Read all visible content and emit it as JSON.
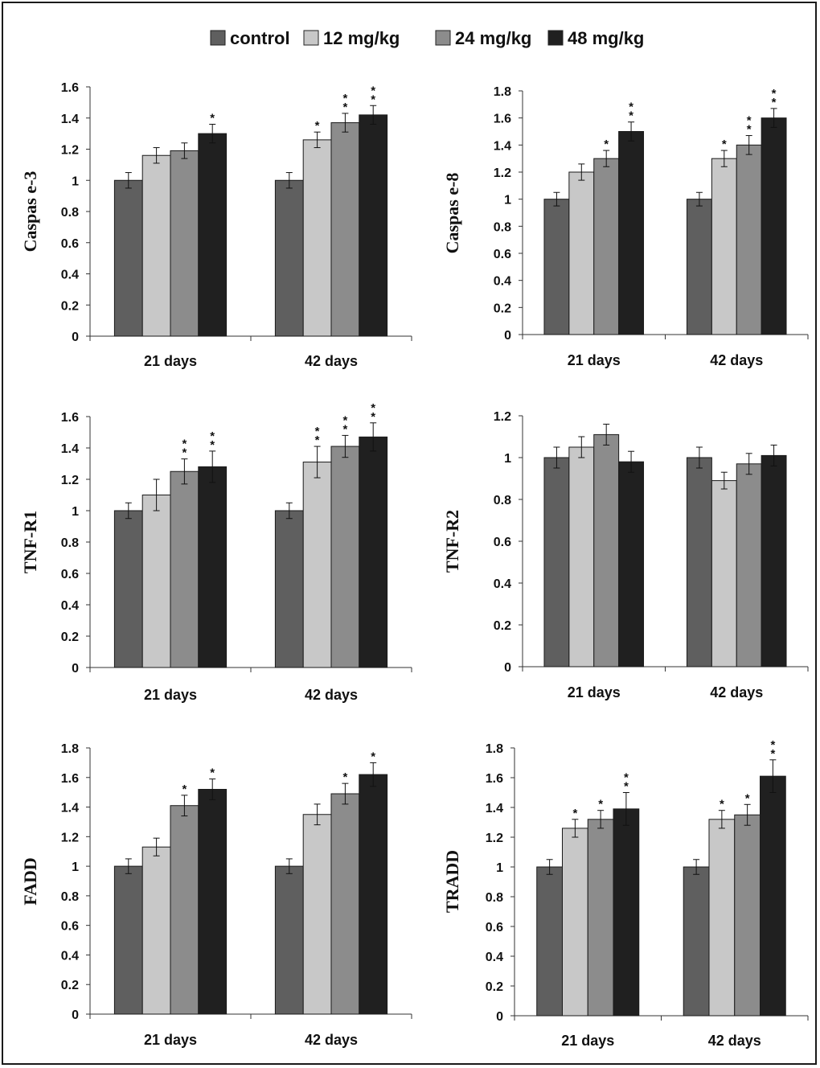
{
  "legend": {
    "series": [
      {
        "name": "control",
        "color": "#5f5f5f"
      },
      {
        "name": "12 mg/kg",
        "color": "#c8c8c8"
      },
      {
        "name": "24 mg/kg",
        "color": "#8c8c8c"
      },
      {
        "name": "48 mg/kg",
        "color": "#202020"
      }
    ]
  },
  "chart_data": [
    {
      "type": "bar",
      "ylabel": "Caspas e-3",
      "categories": [
        "21 days",
        "42 days"
      ],
      "ylim": [
        0,
        1.6
      ],
      "yticks": [
        "0",
        "0.2",
        "0.4",
        "0.6",
        "0.8",
        "1",
        "1.2",
        "1.4",
        "1.6"
      ],
      "series": [
        {
          "name": "control",
          "values": [
            1.0,
            1.0
          ],
          "errors": [
            0.05,
            0.05
          ],
          "sig": [
            "",
            ""
          ]
        },
        {
          "name": "12 mg/kg",
          "values": [
            1.16,
            1.26
          ],
          "errors": [
            0.05,
            0.05
          ],
          "sig": [
            "",
            "*"
          ]
        },
        {
          "name": "24 mg/kg",
          "values": [
            1.19,
            1.37
          ],
          "errors": [
            0.05,
            0.06
          ],
          "sig": [
            "",
            "**"
          ]
        },
        {
          "name": "48 mg/kg",
          "values": [
            1.3,
            1.42
          ],
          "errors": [
            0.06,
            0.06
          ],
          "sig": [
            "*",
            "**"
          ]
        }
      ]
    },
    {
      "type": "bar",
      "ylabel": "Caspas e-8",
      "categories": [
        "21 days",
        "42 days"
      ],
      "ylim": [
        0,
        1.8
      ],
      "yticks": [
        "0",
        "0.2",
        "0.4",
        "0.6",
        "0.8",
        "1",
        "1.2",
        "1.4",
        "1.6",
        "1.8"
      ],
      "series": [
        {
          "name": "control",
          "values": [
            1.0,
            1.0
          ],
          "errors": [
            0.05,
            0.05
          ],
          "sig": [
            "",
            ""
          ]
        },
        {
          "name": "12 mg/kg",
          "values": [
            1.2,
            1.3
          ],
          "errors": [
            0.06,
            0.06
          ],
          "sig": [
            "",
            "*"
          ]
        },
        {
          "name": "24 mg/kg",
          "values": [
            1.3,
            1.4
          ],
          "errors": [
            0.06,
            0.07
          ],
          "sig": [
            "*",
            "**"
          ]
        },
        {
          "name": "48 mg/kg",
          "values": [
            1.5,
            1.6
          ],
          "errors": [
            0.07,
            0.07
          ],
          "sig": [
            "**",
            "**"
          ]
        }
      ]
    },
    {
      "type": "bar",
      "ylabel": "TNF-R1",
      "categories": [
        "21 days",
        "42 days"
      ],
      "ylim": [
        0,
        1.6
      ],
      "yticks": [
        "0",
        "0.2",
        "0.4",
        "0.6",
        "0.8",
        "1",
        "1.2",
        "1.4",
        "1.6"
      ],
      "series": [
        {
          "name": "control",
          "values": [
            1.0,
            1.0
          ],
          "errors": [
            0.05,
            0.05
          ],
          "sig": [
            "",
            ""
          ]
        },
        {
          "name": "12 mg/kg",
          "values": [
            1.1,
            1.31
          ],
          "errors": [
            0.1,
            0.1
          ],
          "sig": [
            "",
            "**"
          ]
        },
        {
          "name": "24 mg/kg",
          "values": [
            1.25,
            1.41
          ],
          "errors": [
            0.08,
            0.07
          ],
          "sig": [
            "**",
            "**"
          ]
        },
        {
          "name": "48 mg/kg",
          "values": [
            1.28,
            1.47
          ],
          "errors": [
            0.1,
            0.09
          ],
          "sig": [
            "**",
            "**"
          ]
        }
      ]
    },
    {
      "type": "bar",
      "ylabel": "TNF-R2",
      "categories": [
        "21 days",
        "42 days"
      ],
      "ylim": [
        0,
        1.2
      ],
      "yticks": [
        "0",
        "0.2",
        "0.4",
        "0.6",
        "0.8",
        "1",
        "1.2"
      ],
      "series": [
        {
          "name": "control",
          "values": [
            1.0,
            1.0
          ],
          "errors": [
            0.05,
            0.05
          ],
          "sig": [
            "",
            ""
          ]
        },
        {
          "name": "12 mg/kg",
          "values": [
            1.05,
            0.89
          ],
          "errors": [
            0.05,
            0.04
          ],
          "sig": [
            "",
            ""
          ]
        },
        {
          "name": "24 mg/kg",
          "values": [
            1.11,
            0.97
          ],
          "errors": [
            0.05,
            0.05
          ],
          "sig": [
            "",
            ""
          ]
        },
        {
          "name": "48 mg/kg",
          "values": [
            0.98,
            1.01
          ],
          "errors": [
            0.05,
            0.05
          ],
          "sig": [
            "",
            ""
          ]
        }
      ]
    },
    {
      "type": "bar",
      "ylabel": "FADD",
      "categories": [
        "21 days",
        "42 days"
      ],
      "ylim": [
        0,
        1.8
      ],
      "yticks": [
        "0",
        "0.2",
        "0.4",
        "0.6",
        "0.8",
        "1",
        "1.2",
        "1.4",
        "1.6",
        "1.8"
      ],
      "series": [
        {
          "name": "control",
          "values": [
            1.0,
            1.0
          ],
          "errors": [
            0.05,
            0.05
          ],
          "sig": [
            "",
            ""
          ]
        },
        {
          "name": "12 mg/kg",
          "values": [
            1.13,
            1.35
          ],
          "errors": [
            0.06,
            0.07
          ],
          "sig": [
            "",
            ""
          ]
        },
        {
          "name": "24 mg/kg",
          "values": [
            1.41,
            1.49
          ],
          "errors": [
            0.07,
            0.07
          ],
          "sig": [
            "*",
            "*"
          ]
        },
        {
          "name": "48 mg/kg",
          "values": [
            1.52,
            1.62
          ],
          "errors": [
            0.07,
            0.08
          ],
          "sig": [
            "*",
            "*"
          ]
        }
      ]
    },
    {
      "type": "bar",
      "ylabel": "TRADD",
      "categories": [
        "21 days",
        "42 days"
      ],
      "ylim": [
        0,
        1.8
      ],
      "yticks": [
        "0",
        "0.2",
        "0.4",
        "0.6",
        "0.8",
        "1",
        "1.2",
        "1.4",
        "1.6",
        "1.8"
      ],
      "series": [
        {
          "name": "control",
          "values": [
            1.0,
            1.0
          ],
          "errors": [
            0.05,
            0.05
          ],
          "sig": [
            "",
            ""
          ]
        },
        {
          "name": "12 mg/kg",
          "values": [
            1.26,
            1.32
          ],
          "errors": [
            0.06,
            0.06
          ],
          "sig": [
            "*",
            "*"
          ]
        },
        {
          "name": "24 mg/kg",
          "values": [
            1.32,
            1.35
          ],
          "errors": [
            0.06,
            0.07
          ],
          "sig": [
            "*",
            "*"
          ]
        },
        {
          "name": "48 mg/kg",
          "values": [
            1.39,
            1.61
          ],
          "errors": [
            0.11,
            0.11
          ],
          "sig": [
            "**",
            "**"
          ]
        }
      ]
    }
  ]
}
